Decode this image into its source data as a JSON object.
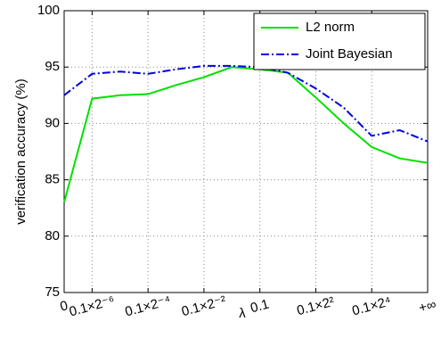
{
  "chart_data": {
    "type": "line",
    "x_label": "λ",
    "y_label": "verification accuracy (%)",
    "categories": [
      "0",
      "0.1×2⁻⁶",
      null,
      "0.1×2⁻⁴",
      null,
      "0.1×2⁻²",
      null,
      "0.1",
      null,
      "0.1×2²",
      null,
      "0.1×2⁴",
      null,
      "+∞"
    ],
    "series": [
      {
        "name": "L2 norm",
        "color": "#00e000",
        "values": [
          83.0,
          92.2,
          92.5,
          92.6,
          93.4,
          94.1,
          95.0,
          94.8,
          94.5,
          92.3,
          90.0,
          87.9,
          86.9,
          86.5
        ]
      },
      {
        "name": "Joint Bayesian",
        "color": "#0000e0",
        "values": [
          92.5,
          94.4,
          94.6,
          94.4,
          94.8,
          95.1,
          95.1,
          95.0,
          94.5,
          93.1,
          91.4,
          88.9,
          89.4,
          88.4
        ]
      }
    ],
    "ylim": [
      75,
      100
    ],
    "yticks": [
      75,
      80,
      85,
      90,
      95,
      100
    ],
    "grid": true,
    "legend": "upper right"
  }
}
